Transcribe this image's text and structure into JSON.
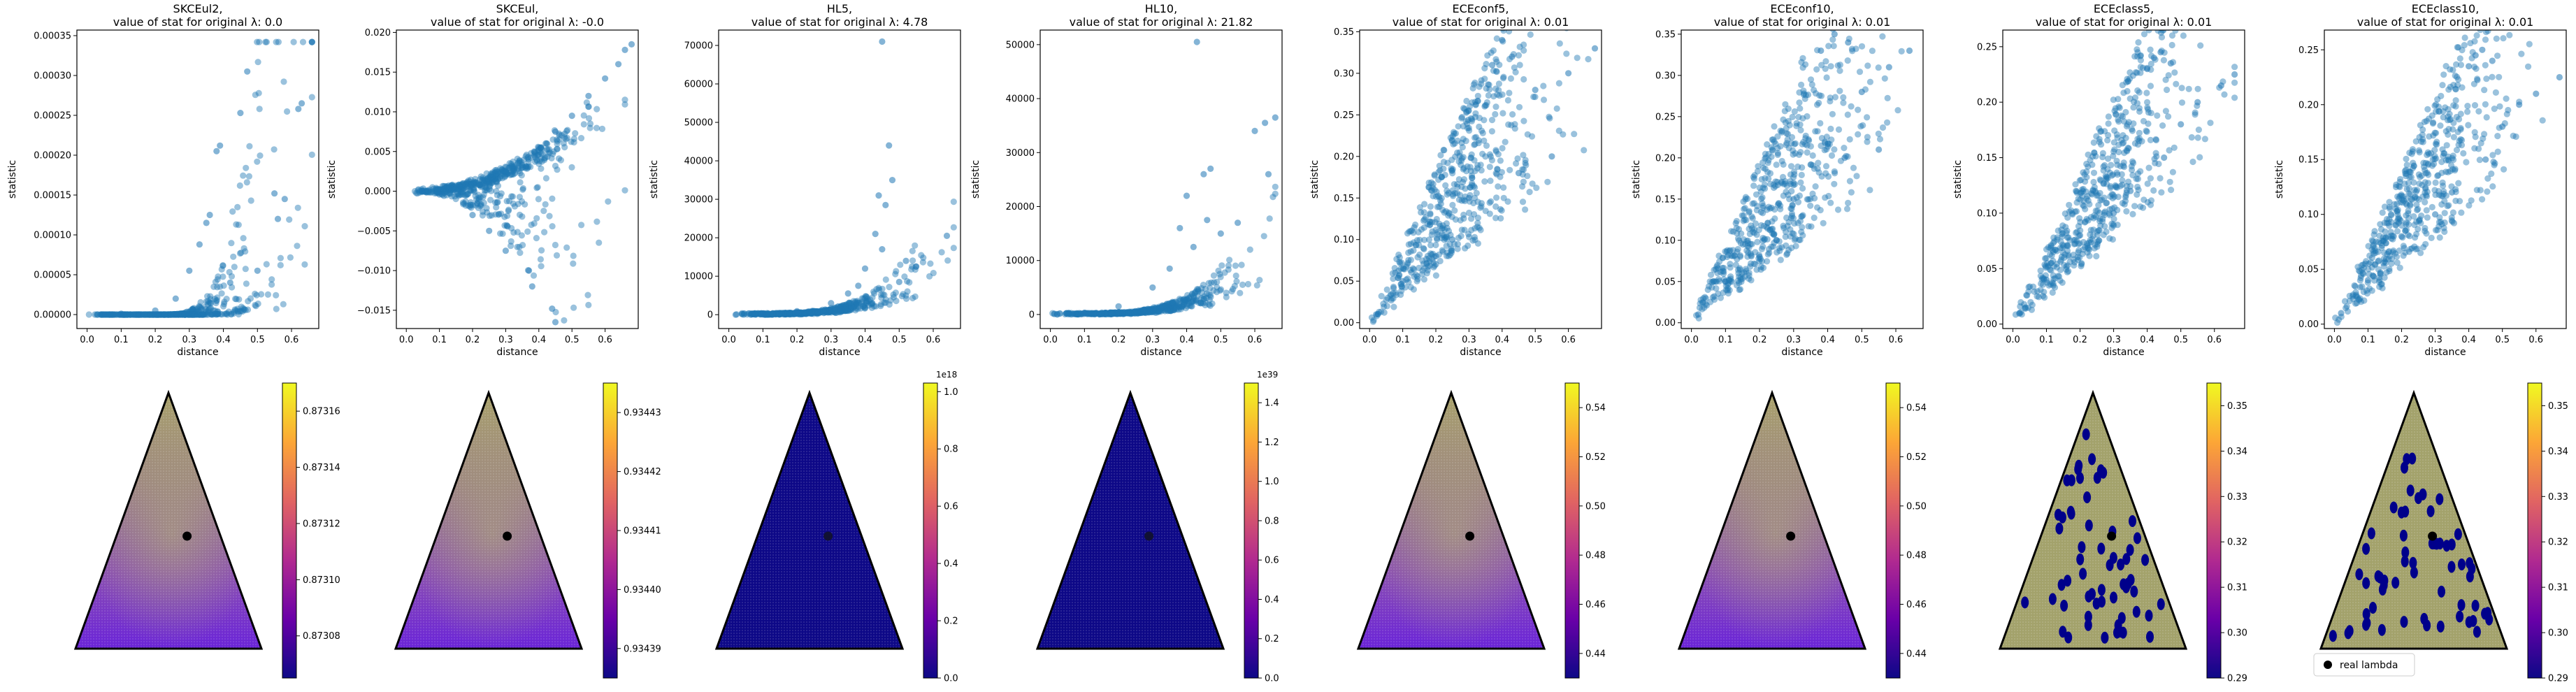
{
  "figure": {
    "marker_color": "#1f77b4",
    "legend_label": "real lambda"
  },
  "chart_data": [
    {
      "type": "scatter",
      "title": "SKCEul2,\nvalue of stat for original λ: 0.0",
      "xlabel": "distance",
      "ylabel": "statistic",
      "xlim": [
        -0.03,
        0.68
      ],
      "ylim": [
        -1.75e-05,
        0.000357
      ],
      "xticks": [
        0.0,
        0.1,
        0.2,
        0.3,
        0.4,
        0.5,
        0.6
      ],
      "xtick_labels": [
        "0.0",
        "0.1",
        "0.2",
        "0.3",
        "0.4",
        "0.5",
        "0.6"
      ],
      "yticks": [
        0,
        5e-05,
        0.0001,
        0.00015,
        0.0002,
        0.00025,
        0.0003,
        0.00035
      ],
      "ytick_labels": [
        "0.00000",
        "0.00005",
        "0.00010",
        "0.00015",
        "0.00020",
        "0.00025",
        "0.00030",
        "0.00035"
      ],
      "shape": "twoexp",
      "noise": 0.35,
      "points": [
        [
          0.66,
          0.000342
        ],
        [
          0.47,
          0.000305
        ],
        [
          0.63,
          0.000265
        ],
        [
          0.62,
          0.000258
        ],
        [
          0.45,
          0.000253
        ],
        [
          0.39,
          0.000212
        ],
        [
          0.38,
          0.000205
        ],
        [
          0.55,
          0.000152
        ],
        [
          0.58,
          0.000145
        ],
        [
          0.36,
          0.000125
        ],
        [
          0.35,
          0.000115
        ],
        [
          0.33,
          8.8e-05
        ],
        [
          0.42,
          4e-05
        ],
        [
          0.5,
          5.5e-05
        ],
        [
          0.56,
          0.00012
        ],
        [
          0.3,
          5.5e-05
        ],
        [
          0.26,
          2e-05
        ],
        [
          0.2,
          5e-06
        ],
        [
          0.1,
          1e-06
        ],
        [
          0.05,
          0.0
        ]
      ]
    },
    {
      "type": "scatter",
      "title": "SKCEul,\nvalue of stat for original λ: -0.0",
      "xlabel": "distance",
      "ylabel": "statistic",
      "xlim": [
        -0.03,
        0.7
      ],
      "ylim": [
        -0.0173,
        0.0203
      ],
      "xticks": [
        0.0,
        0.1,
        0.2,
        0.3,
        0.4,
        0.5,
        0.6
      ],
      "xtick_labels": [
        "0.0",
        "0.1",
        "0.2",
        "0.3",
        "0.4",
        "0.5",
        "0.6"
      ],
      "yticks": [
        -0.015,
        -0.01,
        -0.005,
        0.0,
        0.005,
        0.01,
        0.015,
        0.02
      ],
      "ytick_labels": [
        "−0.015",
        "−0.010",
        "−0.005",
        "0.000",
        "0.005",
        "0.010",
        "0.015",
        "0.020"
      ],
      "shape": "fan",
      "noise": 0.0,
      "points": [
        [
          0.68,
          0.0185
        ],
        [
          0.66,
          0.0178
        ],
        [
          0.64,
          0.016
        ],
        [
          0.6,
          0.0142
        ],
        [
          0.55,
          0.012
        ],
        [
          0.5,
          0.0095
        ],
        [
          0.45,
          0.0075
        ],
        [
          0.4,
          0.0055
        ],
        [
          0.45,
          -0.0165
        ],
        [
          0.44,
          -0.0148
        ],
        [
          0.38,
          -0.012
        ],
        [
          0.37,
          -0.01
        ],
        [
          0.3,
          -0.0075
        ],
        [
          0.25,
          -0.005
        ],
        [
          0.2,
          -0.003
        ],
        [
          0.1,
          -0.0004
        ],
        [
          0.05,
          0.0
        ]
      ]
    },
    {
      "type": "scatter",
      "title": "HL5,\nvalue of stat for original λ: 4.78",
      "xlabel": "distance",
      "ylabel": "statistic",
      "xlim": [
        -0.03,
        0.68
      ],
      "ylim": [
        -3600,
        74000
      ],
      "xticks": [
        0.0,
        0.1,
        0.2,
        0.3,
        0.4,
        0.5,
        0.6
      ],
      "xtick_labels": [
        "0.0",
        "0.1",
        "0.2",
        "0.3",
        "0.4",
        "0.5",
        "0.6"
      ],
      "yticks": [
        0,
        10000,
        20000,
        30000,
        40000,
        50000,
        60000,
        70000
      ],
      "ytick_labels": [
        "0",
        "10000",
        "20000",
        "30000",
        "40000",
        "50000",
        "60000",
        "70000"
      ],
      "shape": "exp",
      "noise": 0.6,
      "points": [
        [
          0.45,
          71000
        ],
        [
          0.47,
          44000
        ],
        [
          0.48,
          35000
        ],
        [
          0.44,
          31000
        ],
        [
          0.46,
          28500
        ],
        [
          0.64,
          20500
        ],
        [
          0.43,
          21000
        ],
        [
          0.45,
          17000
        ],
        [
          0.52,
          14000
        ],
        [
          0.55,
          12500
        ],
        [
          0.4,
          12000
        ],
        [
          0.5,
          8500
        ],
        [
          0.38,
          7500
        ],
        [
          0.35,
          5500
        ],
        [
          0.3,
          3000
        ],
        [
          0.2,
          900
        ],
        [
          0.1,
          300
        ],
        [
          0.02,
          0
        ]
      ]
    },
    {
      "type": "scatter",
      "title": "HL10,\nvalue of stat for original λ: 21.82",
      "xlabel": "distance",
      "ylabel": "statistic",
      "xlim": [
        -0.03,
        0.68
      ],
      "ylim": [
        -2600,
        52700
      ],
      "xticks": [
        0.0,
        0.1,
        0.2,
        0.3,
        0.4,
        0.5,
        0.6
      ],
      "xtick_labels": [
        "0.0",
        "0.1",
        "0.2",
        "0.3",
        "0.4",
        "0.5",
        "0.6"
      ],
      "yticks": [
        0,
        10000,
        20000,
        30000,
        40000,
        50000
      ],
      "ytick_labels": [
        "0",
        "10000",
        "20000",
        "30000",
        "40000",
        "50000"
      ],
      "shape": "exp",
      "noise": 0.7,
      "points": [
        [
          0.43,
          50500
        ],
        [
          0.66,
          36500
        ],
        [
          0.63,
          35500
        ],
        [
          0.6,
          34000
        ],
        [
          0.47,
          27000
        ],
        [
          0.45,
          26000
        ],
        [
          0.64,
          26000
        ],
        [
          0.4,
          22000
        ],
        [
          0.46,
          17500
        ],
        [
          0.38,
          16000
        ],
        [
          0.55,
          17000
        ],
        [
          0.5,
          15000
        ],
        [
          0.42,
          12500
        ],
        [
          0.35,
          8500
        ],
        [
          0.3,
          5000
        ],
        [
          0.2,
          1500
        ],
        [
          0.1,
          300
        ],
        [
          0.02,
          0
        ]
      ]
    },
    {
      "type": "scatter",
      "title": "ECEconf5,\nvalue of stat for original λ: 0.01",
      "xlabel": "distance",
      "ylabel": "statistic",
      "xlim": [
        -0.03,
        0.7
      ],
      "ylim": [
        -0.007,
        0.352
      ],
      "xticks": [
        0.0,
        0.1,
        0.2,
        0.3,
        0.4,
        0.5,
        0.6
      ],
      "xtick_labels": [
        "0.0",
        "0.1",
        "0.2",
        "0.3",
        "0.4",
        "0.5",
        "0.6"
      ],
      "yticks": [
        0.0,
        0.05,
        0.1,
        0.15,
        0.2,
        0.25,
        0.3,
        0.35
      ],
      "ytick_labels": [
        "0.00",
        "0.05",
        "0.10",
        "0.15",
        "0.20",
        "0.25",
        "0.30",
        "0.35"
      ],
      "shape": "band",
      "slope_lo": 0.3,
      "slope_hi": 0.92,
      "points": [
        [
          0.4,
          0.34
        ],
        [
          0.43,
          0.32
        ],
        [
          0.37,
          0.31
        ],
        [
          0.68,
          0.33
        ],
        [
          0.6,
          0.3
        ],
        [
          0.5,
          0.28
        ],
        [
          0.45,
          0.18
        ],
        [
          0.55,
          0.2
        ],
        [
          0.3,
          0.15
        ],
        [
          0.25,
          0.1
        ],
        [
          0.2,
          0.08
        ],
        [
          0.1,
          0.05
        ],
        [
          0.02,
          0.01
        ]
      ]
    },
    {
      "type": "scatter",
      "title": "ECEconf10,\nvalue of stat for original λ: 0.01",
      "xlabel": "distance",
      "ylabel": "statistic",
      "xlim": [
        -0.03,
        0.68
      ],
      "ylim": [
        -0.007,
        0.355
      ],
      "xticks": [
        0.0,
        0.1,
        0.2,
        0.3,
        0.4,
        0.5,
        0.6
      ],
      "xtick_labels": [
        "0.0",
        "0.1",
        "0.2",
        "0.3",
        "0.4",
        "0.5",
        "0.6"
      ],
      "yticks": [
        0.0,
        0.05,
        0.1,
        0.15,
        0.2,
        0.25,
        0.3,
        0.35
      ],
      "ytick_labels": [
        "0.00",
        "0.05",
        "0.10",
        "0.15",
        "0.20",
        "0.25",
        "0.30",
        "0.35"
      ],
      "shape": "band",
      "slope_lo": 0.3,
      "slope_hi": 0.98,
      "points": [
        [
          0.42,
          0.35
        ],
        [
          0.38,
          0.33
        ],
        [
          0.46,
          0.34
        ],
        [
          0.64,
          0.33
        ],
        [
          0.58,
          0.31
        ],
        [
          0.5,
          0.28
        ],
        [
          0.45,
          0.2
        ],
        [
          0.55,
          0.21
        ],
        [
          0.3,
          0.15
        ],
        [
          0.25,
          0.1
        ],
        [
          0.2,
          0.08
        ],
        [
          0.1,
          0.05
        ],
        [
          0.02,
          0.01
        ]
      ]
    },
    {
      "type": "scatter",
      "title": "ECEclass5,\nvalue of stat for original λ: 0.01",
      "xlabel": "distance",
      "ylabel": "statistic",
      "xlim": [
        -0.03,
        0.69
      ],
      "ylim": [
        -0.004,
        0.265
      ],
      "xticks": [
        0.0,
        0.1,
        0.2,
        0.3,
        0.4,
        0.5,
        0.6
      ],
      "xtick_labels": [
        "0.0",
        "0.1",
        "0.2",
        "0.3",
        "0.4",
        "0.5",
        "0.6"
      ],
      "yticks": [
        0.0,
        0.05,
        0.1,
        0.15,
        0.2,
        0.25
      ],
      "ytick_labels": [
        "0.00",
        "0.05",
        "0.10",
        "0.15",
        "0.20",
        "0.25"
      ],
      "shape": "band",
      "slope_lo": 0.26,
      "slope_hi": 0.68,
      "points": [
        [
          0.44,
          0.245
        ],
        [
          0.42,
          0.24
        ],
        [
          0.4,
          0.23
        ],
        [
          0.47,
          0.235
        ],
        [
          0.66,
          0.225
        ],
        [
          0.62,
          0.215
        ],
        [
          0.55,
          0.2
        ],
        [
          0.5,
          0.18
        ],
        [
          0.45,
          0.15
        ],
        [
          0.35,
          0.12
        ],
        [
          0.3,
          0.1
        ],
        [
          0.2,
          0.08
        ],
        [
          0.1,
          0.04
        ],
        [
          0.02,
          0.01
        ]
      ]
    },
    {
      "type": "scatter",
      "title": "ECEclass10,\nvalue of stat for original λ: 0.01",
      "xlabel": "distance",
      "ylabel": "statistic",
      "xlim": [
        -0.03,
        0.69
      ],
      "ylim": [
        -0.004,
        0.268
      ],
      "xticks": [
        0.0,
        0.1,
        0.2,
        0.3,
        0.4,
        0.5,
        0.6
      ],
      "xtick_labels": [
        "0.0",
        "0.1",
        "0.2",
        "0.3",
        "0.4",
        "0.5",
        "0.6"
      ],
      "yticks": [
        0.0,
        0.05,
        0.1,
        0.15,
        0.2,
        0.25
      ],
      "ytick_labels": [
        "0.00",
        "0.05",
        "0.10",
        "0.15",
        "0.20",
        "0.25"
      ],
      "shape": "band",
      "slope_lo": 0.26,
      "slope_hi": 0.7,
      "points": [
        [
          0.44,
          0.25
        ],
        [
          0.42,
          0.245
        ],
        [
          0.4,
          0.235
        ],
        [
          0.47,
          0.24
        ],
        [
          0.67,
          0.225
        ],
        [
          0.6,
          0.21
        ],
        [
          0.55,
          0.2
        ],
        [
          0.5,
          0.18
        ],
        [
          0.45,
          0.15
        ],
        [
          0.35,
          0.12
        ],
        [
          0.3,
          0.1
        ],
        [
          0.2,
          0.08
        ],
        [
          0.1,
          0.04
        ],
        [
          0.02,
          0.01
        ]
      ]
    },
    {
      "type": "heatmap",
      "surface": "simplex",
      "fill_style": "gradient",
      "colorbar": {
        "min": 0.873065,
        "max": 0.87317,
        "offset_label": "",
        "ticks": [
          0.87308,
          0.8731,
          0.87312,
          0.87314,
          0.87316
        ],
        "tick_labels": [
          "0.87308",
          "0.87310",
          "0.87312",
          "0.87314",
          "0.87316"
        ]
      },
      "real_lambda": [
        0.33,
        0.33,
        0.34
      ],
      "marker_count": 1
    },
    {
      "type": "heatmap",
      "surface": "simplex",
      "fill_style": "gradient",
      "colorbar": {
        "min": 0.934385,
        "max": 0.934435,
        "offset_label": "",
        "ticks": [
          0.93439,
          0.9344,
          0.93441,
          0.93442,
          0.93443
        ],
        "tick_labels": [
          "0.93439",
          "0.93440",
          "0.93441",
          "0.93442",
          "0.93443"
        ]
      },
      "real_lambda": [
        0.33,
        0.33,
        0.34
      ],
      "marker_count": 1
    },
    {
      "type": "heatmap",
      "surface": "simplex",
      "fill_style": "flat_low",
      "colorbar": {
        "min": 0.0,
        "max": 1.03,
        "offset_label": "1e18",
        "ticks": [
          0.0,
          0.2,
          0.4,
          0.6,
          0.8,
          1.0
        ],
        "tick_labels": [
          "0.0",
          "0.2",
          "0.4",
          "0.6",
          "0.8",
          "1.0"
        ]
      },
      "real_lambda": [
        0.33,
        0.33,
        0.34
      ],
      "marker_count": 1
    },
    {
      "type": "heatmap",
      "surface": "simplex",
      "fill_style": "flat_low",
      "colorbar": {
        "min": 0.0,
        "max": 1.5,
        "offset_label": "1e39",
        "ticks": [
          0.0,
          0.2,
          0.4,
          0.6,
          0.8,
          1.0,
          1.2,
          1.4
        ],
        "tick_labels": [
          "0.0",
          "0.2",
          "0.4",
          "0.6",
          "0.8",
          "1.0",
          "1.2",
          "1.4"
        ]
      },
      "real_lambda": [
        0.33,
        0.33,
        0.34
      ],
      "marker_count": 1
    },
    {
      "type": "heatmap",
      "surface": "simplex",
      "fill_style": "gradient",
      "colorbar": {
        "min": 0.43,
        "max": 0.55,
        "offset_label": "",
        "ticks": [
          0.44,
          0.46,
          0.48,
          0.5,
          0.52,
          0.54
        ],
        "tick_labels": [
          "0.44",
          "0.46",
          "0.48",
          "0.50",
          "0.52",
          "0.54"
        ]
      },
      "real_lambda": [
        0.33,
        0.33,
        0.34
      ],
      "marker_count": 1
    },
    {
      "type": "heatmap",
      "surface": "simplex",
      "fill_style": "gradient",
      "colorbar": {
        "min": 0.43,
        "max": 0.55,
        "offset_label": "",
        "ticks": [
          0.44,
          0.46,
          0.48,
          0.5,
          0.52,
          0.54
        ],
        "tick_labels": [
          "0.44",
          "0.46",
          "0.48",
          "0.50",
          "0.52",
          "0.54"
        ]
      },
      "real_lambda": [
        0.33,
        0.33,
        0.34
      ],
      "marker_count": 1
    },
    {
      "type": "heatmap",
      "surface": "simplex",
      "fill_style": "olive",
      "colorbar": {
        "min": 0.29,
        "max": 0.355,
        "offset_label": "",
        "ticks": [
          0.29,
          0.3,
          0.31,
          0.32,
          0.33,
          0.34,
          0.35
        ],
        "tick_labels": [
          "0.29",
          "0.30",
          "0.31",
          "0.32",
          "0.33",
          "0.34",
          "0.35"
        ]
      },
      "real_lambda": [
        0.33,
        0.33,
        0.34
      ],
      "marker_count": 60
    },
    {
      "type": "heatmap",
      "surface": "simplex",
      "fill_style": "olive",
      "colorbar": {
        "min": 0.29,
        "max": 0.355,
        "offset_label": "",
        "ticks": [
          0.29,
          0.3,
          0.31,
          0.32,
          0.33,
          0.34,
          0.35
        ],
        "tick_labels": [
          "0.29",
          "0.30",
          "0.31",
          "0.32",
          "0.33",
          "0.34",
          "0.35"
        ]
      },
      "real_lambda": [
        0.33,
        0.33,
        0.34
      ],
      "marker_count": 60,
      "legend": true
    }
  ]
}
